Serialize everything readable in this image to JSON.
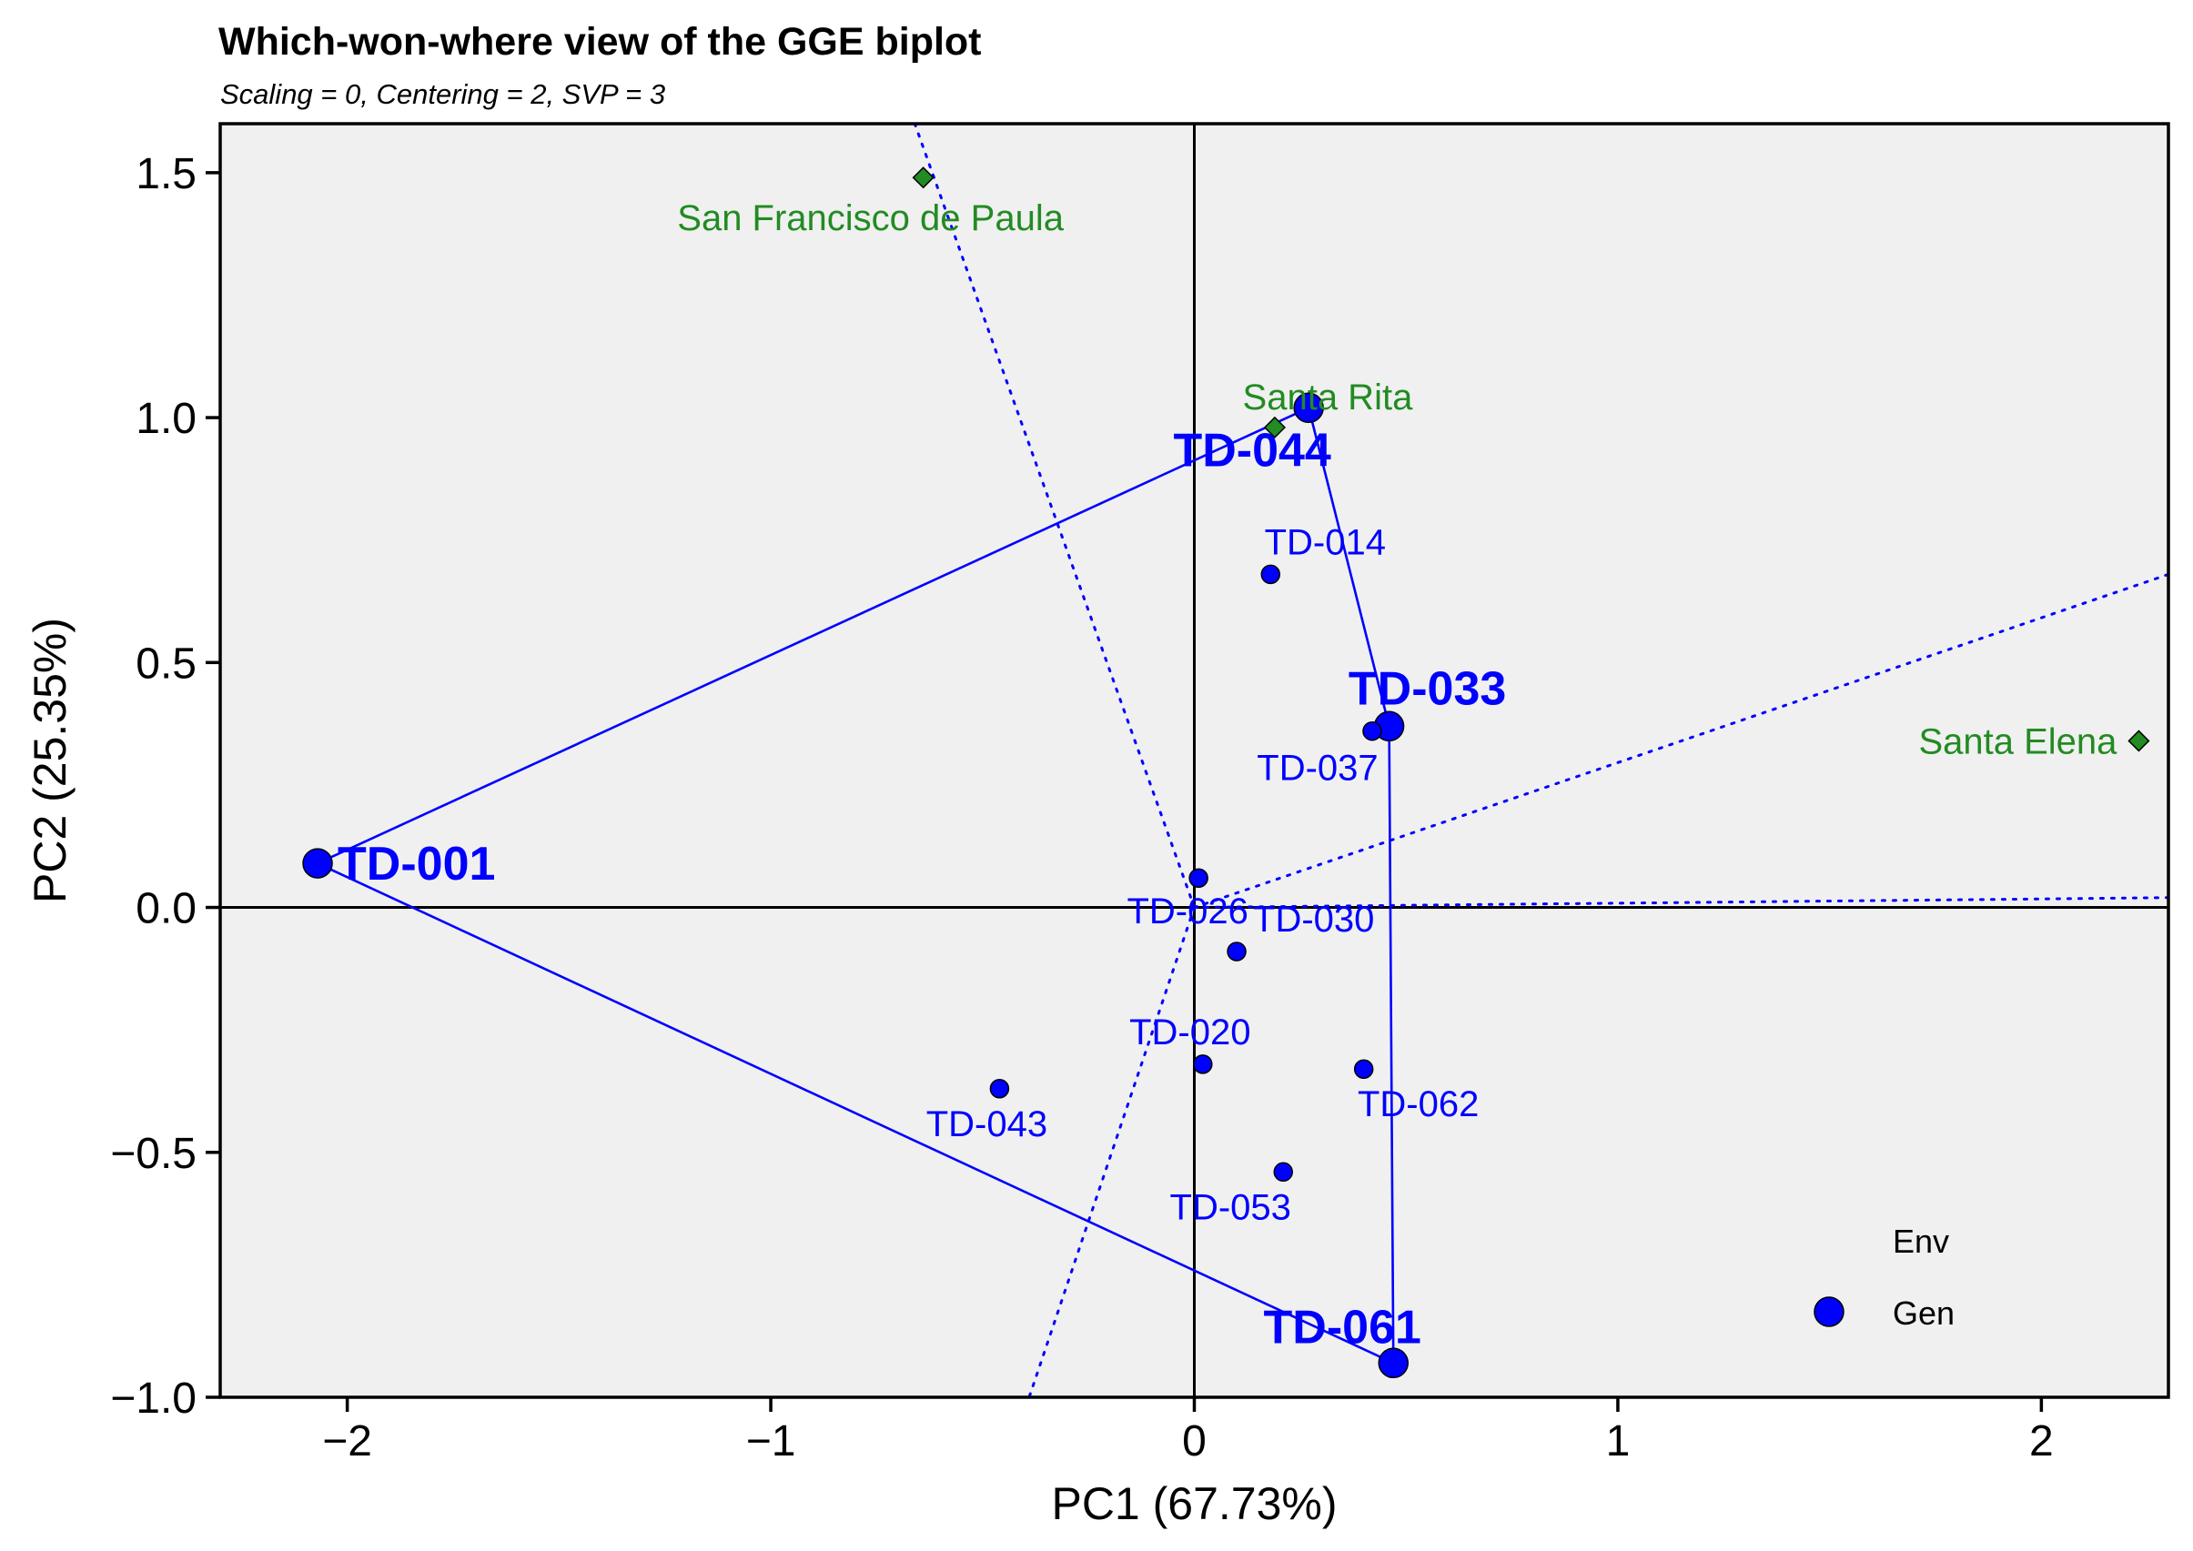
{
  "chart_data": {
    "type": "scatter",
    "title": "Which-won-where view of the GGE biplot",
    "subtitle": "Scaling = 0, Centering = 2, SVP = 3",
    "xlabel": "PC1 (67.73%)",
    "ylabel": "PC2 (25.35%)",
    "xlim": [
      -2.3,
      2.3
    ],
    "ylim": [
      -1.0,
      1.6
    ],
    "xticks": [
      -2,
      -1,
      0,
      1,
      2
    ],
    "xtick_labels": [
      "−2",
      "−1",
      "0",
      "1",
      "2"
    ],
    "yticks": [
      -1.0,
      -0.5,
      0.0,
      0.5,
      1.0,
      1.5
    ],
    "ytick_labels": [
      "−1.0",
      "−0.5",
      "0.0",
      "0.5",
      "1.0",
      "1.5"
    ],
    "genotypes": [
      {
        "name": "TD-001",
        "x": -2.07,
        "y": 0.09,
        "vertex": true,
        "label_side": "right"
      },
      {
        "name": "TD-044",
        "x": 0.27,
        "y": 1.02,
        "vertex": true,
        "label_side": "below-left"
      },
      {
        "name": "TD-033",
        "x": 0.46,
        "y": 0.37,
        "vertex": true,
        "label_side": "above"
      },
      {
        "name": "TD-061",
        "x": 0.47,
        "y": -0.93,
        "vertex": true,
        "label_side": "above-left"
      },
      {
        "name": "TD-014",
        "x": 0.18,
        "y": 0.68,
        "vertex": false,
        "label_side": "above"
      },
      {
        "name": "TD-037",
        "x": 0.42,
        "y": 0.36,
        "vertex": false,
        "label_side": "below"
      },
      {
        "name": "TD-026",
        "x": 0.01,
        "y": 0.06,
        "vertex": false,
        "label_side": "below"
      },
      {
        "name": "TD-030",
        "x": 0.1,
        "y": -0.09,
        "vertex": false,
        "label_side": "above-right"
      },
      {
        "name": "TD-020",
        "x": 0.02,
        "y": -0.32,
        "vertex": false,
        "label_side": "above"
      },
      {
        "name": "TD-043",
        "x": -0.46,
        "y": -0.37,
        "vertex": false,
        "label_side": "below"
      },
      {
        "name": "TD-062",
        "x": 0.4,
        "y": -0.33,
        "vertex": false,
        "label_side": "below"
      },
      {
        "name": "TD-053",
        "x": 0.21,
        "y": -0.54,
        "vertex": false,
        "label_side": "below"
      }
    ],
    "environments": [
      {
        "name": "San Francisco de Paula",
        "x": -0.64,
        "y": 1.49,
        "label_side": "below"
      },
      {
        "name": "Santa Rita",
        "x": 0.19,
        "y": 0.98,
        "label_side": "above"
      },
      {
        "name": "Santa Elena",
        "x": 2.23,
        "y": 0.34,
        "label_side": "left"
      }
    ],
    "polygon_vertices": [
      "TD-001",
      "TD-044",
      "TD-033",
      "TD-061"
    ],
    "sector_rays": [
      {
        "from": [
          0.0,
          0.0
        ],
        "to": [
          -0.66,
          1.6
        ]
      },
      {
        "from": [
          0.0,
          0.0
        ],
        "to": [
          -0.39,
          -1.0
        ]
      },
      {
        "from": [
          0.0,
          0.0
        ],
        "to": [
          2.3,
          0.68
        ]
      },
      {
        "from": [
          0.0,
          0.0
        ],
        "to": [
          2.3,
          0.02
        ]
      }
    ],
    "legend": {
      "position": "bottom-right",
      "entries": [
        "Env",
        "Gen"
      ]
    },
    "colors": {
      "genotype": "#0000ff",
      "environment": "#228b22",
      "panel_background": "#f0f0f0",
      "axis": "#000000"
    }
  }
}
